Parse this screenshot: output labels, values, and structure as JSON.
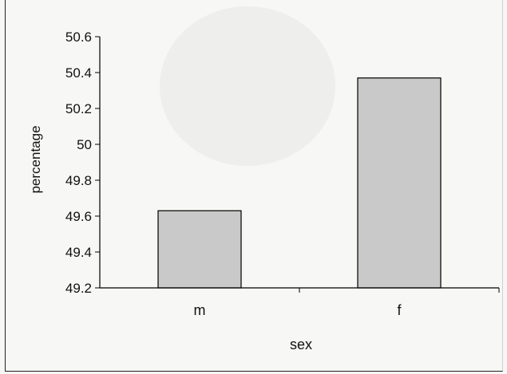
{
  "chart_data": {
    "type": "bar",
    "categories": [
      "m",
      "f"
    ],
    "values": [
      49.63,
      50.37
    ],
    "xlabel": "sex",
    "ylabel": "percentage",
    "ylim": [
      49.2,
      50.6
    ],
    "yticks": [
      "50.6",
      "50.4",
      "50.2",
      "50",
      "49.8",
      "49.6",
      "49.4",
      "49.2"
    ],
    "grid": false,
    "legend": "none",
    "bar_color": "#c9c9c9",
    "bar_border_color": "#000000"
  }
}
